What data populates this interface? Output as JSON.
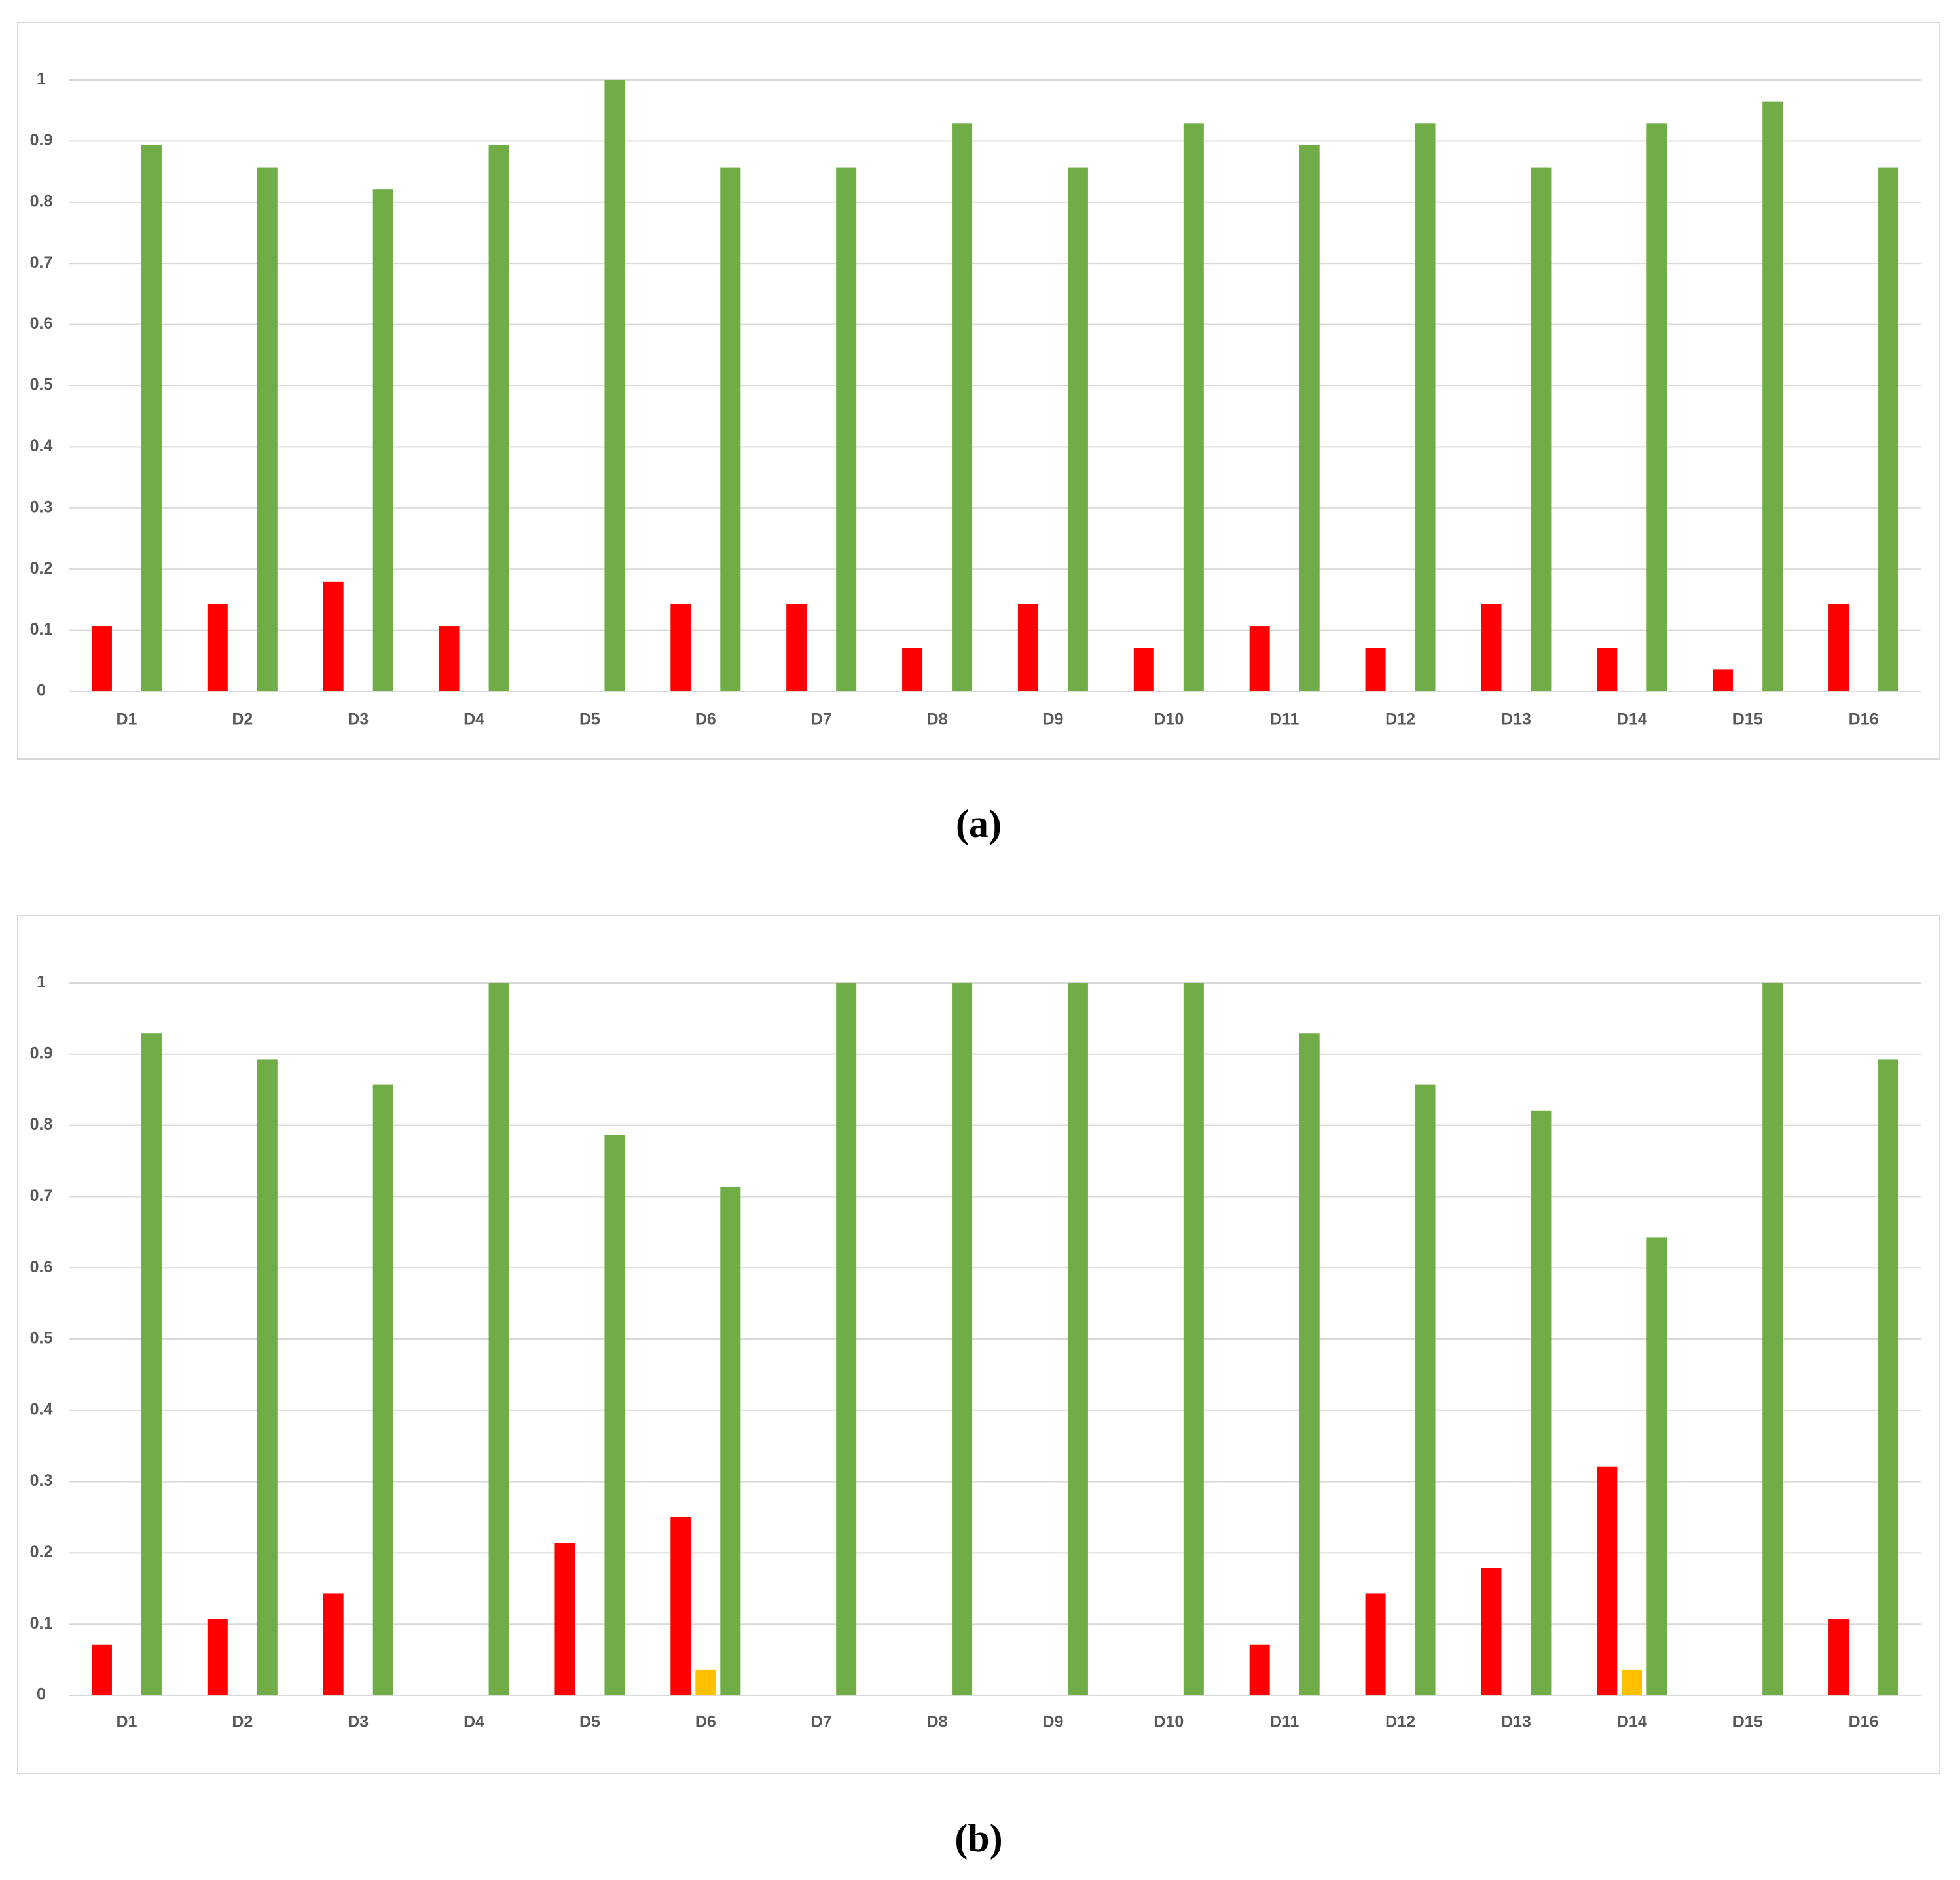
{
  "chart_data": [
    {
      "type": "bar",
      "caption": "(a)",
      "categories": [
        "D1",
        "D2",
        "D3",
        "D4",
        "D5",
        "D6",
        "D7",
        "D8",
        "D9",
        "D10",
        "D11",
        "D12",
        "D13",
        "D14",
        "D15",
        "D16"
      ],
      "series": [
        {
          "color": "#ff0000",
          "values": [
            0.107,
            0.143,
            0.179,
            0.107,
            0,
            0.143,
            0.143,
            0.071,
            0.143,
            0.071,
            0.107,
            0.071,
            0.143,
            0.071,
            0.036,
            0.143
          ]
        },
        {
          "color": "#ffc000",
          "values": [
            0,
            0,
            0,
            0,
            0,
            0,
            0,
            0,
            0,
            0,
            0,
            0,
            0,
            0,
            0,
            0
          ]
        },
        {
          "color": "#70ad47",
          "values": [
            0.893,
            0.857,
            0.821,
            0.893,
            1,
            0.857,
            0.857,
            0.929,
            0.857,
            0.929,
            0.893,
            0.929,
            0.857,
            0.929,
            0.964,
            0.857
          ]
        }
      ],
      "ylim": [
        0,
        1
      ],
      "yticks": [
        0,
        0.1,
        0.2,
        0.3,
        0.4,
        0.5,
        0.6,
        0.7,
        0.8,
        0.9,
        1
      ],
      "grid": true
    },
    {
      "type": "bar",
      "caption": "(b)",
      "categories": [
        "D1",
        "D2",
        "D3",
        "D4",
        "D5",
        "D6",
        "D7",
        "D8",
        "D9",
        "D10",
        "D11",
        "D12",
        "D13",
        "D14",
        "D15",
        "D16"
      ],
      "series": [
        {
          "color": "#ff0000",
          "values": [
            0.071,
            0.107,
            0.143,
            0,
            0.214,
            0.25,
            0,
            0,
            0,
            0,
            0.071,
            0.143,
            0.179,
            0.321,
            0,
            0.107
          ]
        },
        {
          "color": "#ffc000",
          "values": [
            0,
            0,
            0,
            0,
            0,
            0.036,
            0,
            0,
            0,
            0,
            0,
            0,
            0,
            0.036,
            0,
            0
          ]
        },
        {
          "color": "#70ad47",
          "values": [
            0.929,
            0.893,
            0.857,
            1,
            0.786,
            0.714,
            1,
            1,
            1,
            1,
            0.929,
            0.857,
            0.821,
            0.643,
            1,
            0.893
          ]
        }
      ],
      "ylim": [
        0,
        1
      ],
      "yticks": [
        0,
        0.1,
        0.2,
        0.3,
        0.4,
        0.5,
        0.6,
        0.7,
        0.8,
        0.9,
        1
      ],
      "grid": true
    }
  ]
}
